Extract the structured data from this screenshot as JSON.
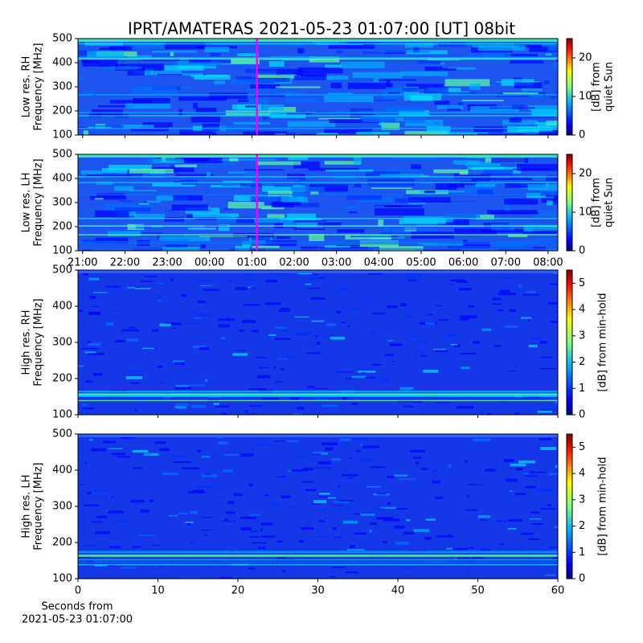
{
  "chart_data": [
    {
      "type": "heatmap",
      "title": "IPRT/AMATERAS 2021-05-23 01:07:00 [UT]   08bit",
      "ylabel": [
        "Low res. RH",
        "Frequency [MHz]"
      ],
      "ylim": [
        100,
        500
      ],
      "yticks": [
        100,
        200,
        300,
        400,
        500
      ],
      "xlim": [
        20.89,
        32.23
      ],
      "xticks": [
        {
          "value": 21,
          "label": "21:00"
        },
        {
          "value": 22,
          "label": "22:00"
        },
        {
          "value": 23,
          "label": "23:00"
        },
        {
          "value": 24,
          "label": "00:00"
        },
        {
          "value": 25,
          "label": "01:00"
        },
        {
          "value": 26,
          "label": "02:00"
        },
        {
          "value": 27,
          "label": "03:00"
        },
        {
          "value": 28,
          "label": "04:00"
        },
        {
          "value": 29,
          "label": "05:00"
        },
        {
          "value": 30,
          "label": "06:00"
        },
        {
          "value": 31,
          "label": "07:00"
        },
        {
          "value": 32,
          "label": "08:00"
        }
      ],
      "show_xticklabels": false,
      "cursor_x": 25.12,
      "cursor_color": "#ff00ff",
      "colorbar": {
        "label": [
          "[dB] from",
          "quiet Sun"
        ],
        "lim": [
          0,
          25
        ],
        "ticks": [
          0,
          10,
          20
        ]
      }
    },
    {
      "type": "heatmap",
      "ylabel": [
        "Low res. LH",
        "Frequency [MHz]"
      ],
      "ylim": [
        100,
        500
      ],
      "yticks": [
        100,
        200,
        300,
        400,
        500
      ],
      "xlim": [
        20.89,
        32.23
      ],
      "xticks": [
        {
          "value": 21,
          "label": "21:00"
        },
        {
          "value": 22,
          "label": "22:00"
        },
        {
          "value": 23,
          "label": "23:00"
        },
        {
          "value": 24,
          "label": "00:00"
        },
        {
          "value": 25,
          "label": "01:00"
        },
        {
          "value": 26,
          "label": "02:00"
        },
        {
          "value": 27,
          "label": "03:00"
        },
        {
          "value": 28,
          "label": "04:00"
        },
        {
          "value": 29,
          "label": "05:00"
        },
        {
          "value": 30,
          "label": "06:00"
        },
        {
          "value": 31,
          "label": "07:00"
        },
        {
          "value": 32,
          "label": "08:00"
        }
      ],
      "show_xticklabels": true,
      "cursor_x": 25.12,
      "cursor_color": "#ff00ff",
      "colorbar": {
        "label": [
          "[dB] from",
          "quiet Sun"
        ],
        "lim": [
          0,
          25
        ],
        "ticks": [
          0,
          10,
          20
        ]
      }
    },
    {
      "type": "heatmap",
      "ylabel": [
        "High res. RH",
        "Frequency [MHz]"
      ],
      "ylim": [
        100,
        500
      ],
      "yticks": [
        100,
        200,
        300,
        400,
        500
      ],
      "xlim": [
        0,
        60
      ],
      "xticks": [
        0,
        10,
        20,
        30,
        40,
        50,
        60
      ],
      "show_xticklabels": false,
      "colorbar": {
        "label": [
          "[dB] from min-hold"
        ],
        "lim": [
          0,
          5.5
        ],
        "ticks": [
          0,
          1,
          2,
          3,
          4,
          5
        ]
      }
    },
    {
      "type": "heatmap",
      "ylabel": [
        "High res. LH",
        "Frequency [MHz]"
      ],
      "ylim": [
        100,
        500
      ],
      "yticks": [
        100,
        200,
        300,
        400,
        500
      ],
      "xlim": [
        0,
        60
      ],
      "xticks": [
        0,
        10,
        20,
        30,
        40,
        50,
        60
      ],
      "show_xticklabels": true,
      "xlabel": [
        "Seconds from",
        "2021-05-23 01:07:00"
      ],
      "colorbar": {
        "label": [
          "[dB] from min-hold"
        ],
        "lim": [
          0,
          5.5
        ],
        "ticks": [
          0,
          1,
          2,
          3,
          4,
          5
        ]
      }
    }
  ]
}
